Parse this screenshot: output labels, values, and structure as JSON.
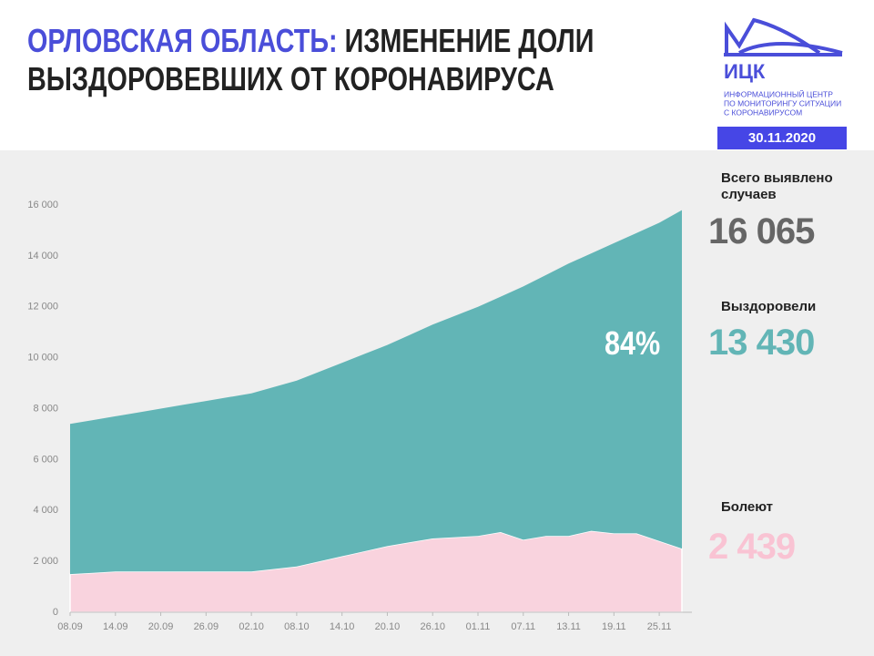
{
  "chart_data": {
    "type": "stacked_area",
    "title_parts": [
      "ОРЛОВСКАЯ ОБЛАСТЬ:",
      "ИЗМЕНЕНИЕ ДОЛИ",
      "ВЫЗДОРОВЕВШИХ ОТ КОРОНАВИРУСА"
    ],
    "logo": {
      "name": "ИЦК",
      "lines": [
        "ИНФОРМАЦИОННЫЙ ЦЕНТР",
        "ПО МОНИТОРИНГУ СИТУАЦИИ",
        "С КОРОНАВИРУСОМ"
      ]
    },
    "date": "30.11.2020",
    "categories": [
      "08.09",
      null,
      "14.09",
      null,
      "20.09",
      null,
      "26.09",
      null,
      "02.10",
      null,
      "08.10",
      null,
      "14.10",
      null,
      "20.10",
      null,
      "26.10",
      null,
      "01.11",
      null,
      "07.11",
      null,
      "13.11",
      null,
      "19.11",
      null,
      "25.11",
      null
    ],
    "series": [
      {
        "name": "Болеют",
        "color": "#f9d3de",
        "latest": {
          "value": 2439,
          "label": "2 439"
        },
        "values": [
          1500,
          1550,
          1600,
          1600,
          1600,
          1600,
          1600,
          1600,
          1600,
          1700,
          1800,
          2000,
          2200,
          2400,
          2600,
          2750,
          2900,
          2950,
          3000,
          3150,
          2850,
          3000,
          3000,
          3200,
          3100,
          3100,
          2800,
          2500
        ]
      },
      {
        "name": "Выздоровели",
        "color": "#62b5b6",
        "latest": {
          "value": 13430,
          "label": "13 430"
        },
        "values": [
          5900,
          6000,
          6100,
          6250,
          6400,
          6550,
          6700,
          6850,
          7000,
          7150,
          7300,
          7450,
          7600,
          7750,
          7900,
          8150,
          8400,
          8700,
          9000,
          9250,
          9950,
          10250,
          10700,
          10900,
          11400,
          11800,
          12500,
          13300
        ]
      }
    ],
    "total": {
      "name": "Всего выявлено случаев",
      "value": 16065,
      "label": "16 065"
    },
    "share": {
      "value": 84,
      "label": "84%"
    },
    "ylim": [
      0,
      16000
    ],
    "yticks": [
      0,
      {
        "value": 2000,
        "label": "2 000"
      },
      {
        "value": 4000,
        "label": "4 000"
      },
      {
        "value": 6000,
        "label": "6 000"
      },
      {
        "value": 8000,
        "label": "8 000"
      },
      {
        "value": 10000,
        "label": "10 000"
      },
      {
        "value": 12000,
        "label": "12 000"
      },
      {
        "value": 14000,
        "label": "14 000"
      },
      {
        "value": 16000,
        "label": "16 000"
      }
    ],
    "grid": false
  }
}
